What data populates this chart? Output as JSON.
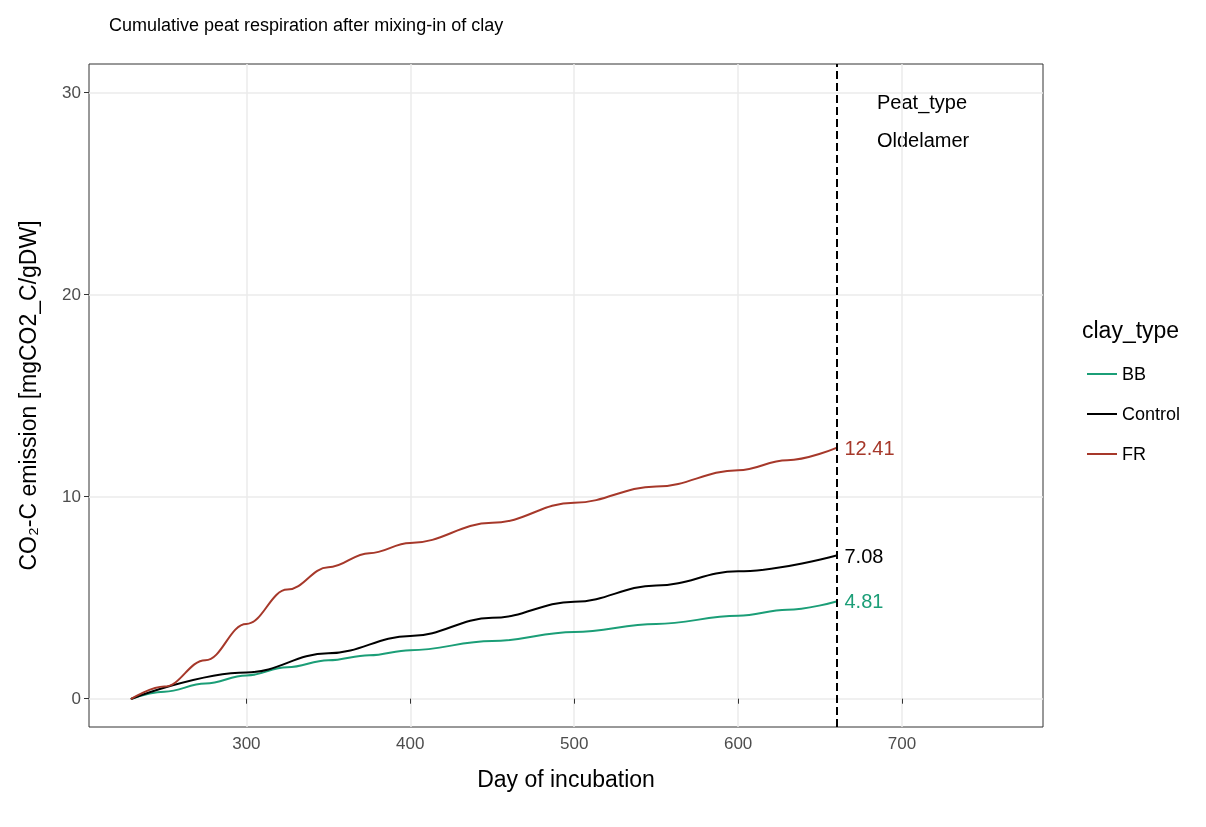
{
  "chart_data": {
    "type": "line",
    "title": "Cumulative peat respiration after mixing-in of clay",
    "xlabel": "Day of incubation",
    "ylabel": "CO₂-C emission [mgCO2_C/gDW]",
    "legend_title": "clay_type",
    "annotations": [
      "Peat_type",
      "Oldelamer"
    ],
    "xlim": [
      204,
      786
    ],
    "xticks": [
      300,
      400,
      500,
      600,
      700
    ],
    "ylim": [
      -1.4,
      31.4
    ],
    "yticks": [
      0,
      10,
      20,
      30
    ],
    "grid": true,
    "legend": "right",
    "marker": "none",
    "line_style": "solid",
    "ref_lines": [
      {
        "axis": "x",
        "value": 660,
        "label": null,
        "color": "#000000",
        "line_style": "dashed"
      }
    ],
    "series": [
      {
        "name": "BB",
        "color": "#1b9e77",
        "x": [
          230,
          250,
          275,
          300,
          325,
          350,
          375,
          400,
          450,
          500,
          550,
          600,
          630,
          660
        ],
        "values": [
          0,
          0.35,
          0.75,
          1.15,
          1.55,
          1.9,
          2.15,
          2.4,
          2.85,
          3.3,
          3.7,
          4.1,
          4.4,
          4.81
        ],
        "value_labels": [
          null,
          null,
          null,
          null,
          null,
          null,
          null,
          null,
          null,
          null,
          null,
          null,
          null,
          "4.81"
        ]
      },
      {
        "name": "Control",
        "color": "#000000",
        "x": [
          230,
          300,
          350,
          400,
          450,
          500,
          550,
          600,
          660
        ],
        "values": [
          0,
          1.3,
          2.25,
          3.1,
          4.0,
          4.8,
          5.6,
          6.3,
          7.08
        ],
        "value_labels": [
          null,
          null,
          null,
          null,
          null,
          null,
          null,
          null,
          "7.08"
        ]
      },
      {
        "name": "FR",
        "color": "#a6382a",
        "x": [
          230,
          250,
          275,
          300,
          325,
          350,
          375,
          400,
          450,
          500,
          550,
          600,
          630,
          660
        ],
        "values": [
          0,
          0.6,
          1.9,
          3.7,
          5.4,
          6.5,
          7.2,
          7.7,
          8.7,
          9.7,
          10.5,
          11.3,
          11.8,
          12.41
        ],
        "value_labels": [
          null,
          null,
          null,
          null,
          null,
          null,
          null,
          null,
          null,
          null,
          null,
          null,
          null,
          "12.41"
        ]
      }
    ]
  }
}
